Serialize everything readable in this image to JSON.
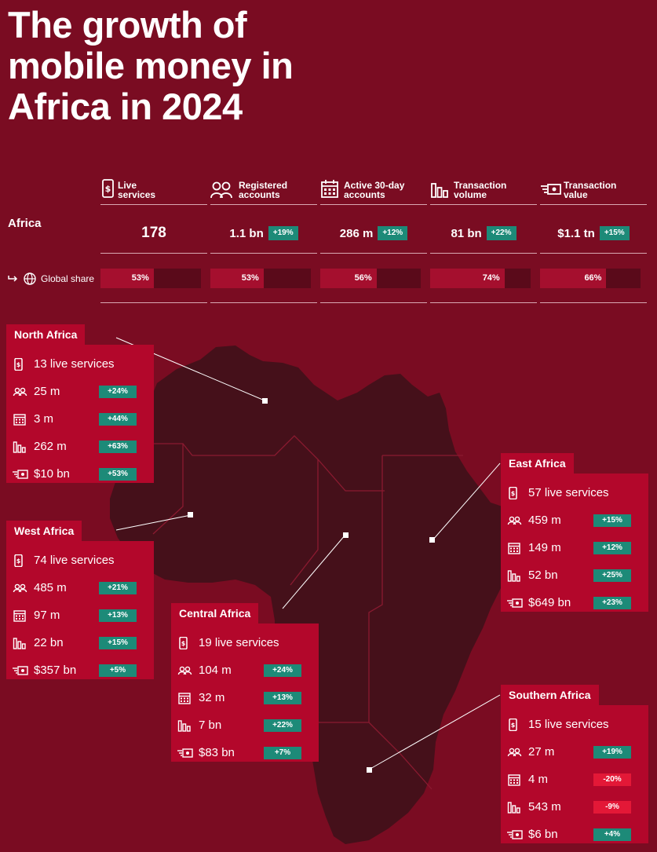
{
  "title": [
    "The growth of",
    "mobile money in",
    "Africa in 2024"
  ],
  "columns": [
    {
      "id": "live",
      "label": [
        "Live",
        "services"
      ],
      "icon": "mobile-dollar-icon"
    },
    {
      "id": "accounts",
      "label": [
        "Registered",
        "accounts"
      ],
      "icon": "users-icon"
    },
    {
      "id": "active",
      "label": [
        "Active 30-day",
        "accounts"
      ],
      "icon": "calendar-icon"
    },
    {
      "id": "volume",
      "label": [
        "Transaction",
        "volume"
      ],
      "icon": "bar-chart-icon"
    },
    {
      "id": "value",
      "label": [
        "Transaction",
        "value"
      ],
      "icon": "money-transfer-icon"
    }
  ],
  "africa_row": {
    "label": "Africa",
    "cells": [
      {
        "value": "178",
        "growth": ""
      },
      {
        "value": "1.1 bn",
        "growth": "+19%"
      },
      {
        "value": "286 m",
        "growth": "+12%"
      },
      {
        "value": "81 bn",
        "growth": "+22%"
      },
      {
        "value": "$1.1 tn",
        "growth": "+15%"
      }
    ]
  },
  "global_share": {
    "label": "Global share",
    "arrow_icon": "arrow-right-icon",
    "globe_icon": "globe-icon",
    "cells": [
      {
        "text": "53%",
        "fraction": 0.53
      },
      {
        "text": "53%",
        "fraction": 0.53
      },
      {
        "text": "56%",
        "fraction": 0.56
      },
      {
        "text": "74%",
        "fraction": 0.74
      },
      {
        "text": "66%",
        "fraction": 0.66
      }
    ]
  },
  "colors": {
    "background": "#7a0c22",
    "box": "#b3072b",
    "map": "#45101a",
    "positive": "#1d8a78",
    "negative": "#e31837"
  },
  "regions": [
    {
      "id": "north",
      "name": "North Africa",
      "live": "13 live services",
      "accounts": "25 m",
      "accounts_growth": "+24%",
      "active": "3 m",
      "active_growth": "+44%",
      "volume": "262 m",
      "volume_growth": "+63%",
      "value": "$10 bn",
      "value_growth": "+53%"
    },
    {
      "id": "west",
      "name": "West Africa",
      "live": "74 live services",
      "accounts": "485 m",
      "accounts_growth": "+21%",
      "active": "97 m",
      "active_growth": "+13%",
      "volume": "22 bn",
      "volume_growth": "+15%",
      "value": "$357 bn",
      "value_growth": "+5%"
    },
    {
      "id": "central",
      "name": "Central Africa",
      "live": "19 live services",
      "accounts": "104 m",
      "accounts_growth": "+24%",
      "active": "32 m",
      "active_growth": "+13%",
      "volume": "7 bn",
      "volume_growth": "+22%",
      "value": "$83 bn",
      "value_growth": "+7%"
    },
    {
      "id": "east",
      "name": "East Africa",
      "live": "57 live services",
      "accounts": "459 m",
      "accounts_growth": "+15%",
      "active": "149 m",
      "active_growth": "+12%",
      "volume": "52 bn",
      "volume_growth": "+25%",
      "value": "$649 bn",
      "value_growth": "+23%"
    },
    {
      "id": "southern",
      "name": "Southern Africa",
      "live": "15 live services",
      "accounts": "27 m",
      "accounts_growth": "+19%",
      "active": "4 m",
      "active_growth": "-20%",
      "volume": "543 m",
      "volume_growth": "-9%",
      "value": "$6 bn",
      "value_growth": "+4%"
    }
  ],
  "chart_data": {
    "type": "table",
    "columns": [
      "Live services",
      "Registered accounts",
      "Active 30-day accounts",
      "Transaction volume",
      "Transaction value"
    ],
    "rows": [
      {
        "name": "Africa",
        "values": [
          "178",
          "1.1 bn",
          "286 m",
          "81 bn",
          "$1.1 tn"
        ],
        "growth": [
          null,
          "+19%",
          "+12%",
          "+22%",
          "+15%"
        ]
      },
      {
        "name": "Global share",
        "values": [
          53,
          53,
          56,
          74,
          66
        ]
      },
      {
        "name": "North Africa",
        "values": [
          13,
          "25 m",
          "3 m",
          "262 m",
          "$10 bn"
        ],
        "growth": [
          null,
          "+24%",
          "+44%",
          "+63%",
          "+53%"
        ]
      },
      {
        "name": "West Africa",
        "values": [
          74,
          "485 m",
          "97 m",
          "22 bn",
          "$357 bn"
        ],
        "growth": [
          null,
          "+21%",
          "+13%",
          "+15%",
          "+5%"
        ]
      },
      {
        "name": "Central Africa",
        "values": [
          19,
          "104 m",
          "32 m",
          "7 bn",
          "$83 bn"
        ],
        "growth": [
          null,
          "+24%",
          "+13%",
          "+22%",
          "+7%"
        ]
      },
      {
        "name": "East Africa",
        "values": [
          57,
          "459 m",
          "149 m",
          "52 bn",
          "$649 bn"
        ],
        "growth": [
          null,
          "+15%",
          "+12%",
          "+25%",
          "+23%"
        ]
      },
      {
        "name": "Southern Africa",
        "values": [
          15,
          "27 m",
          "4 m",
          "543 m",
          "$6 bn"
        ],
        "growth": [
          null,
          "+19%",
          "-20%",
          "-9%",
          "+4%"
        ]
      }
    ]
  }
}
